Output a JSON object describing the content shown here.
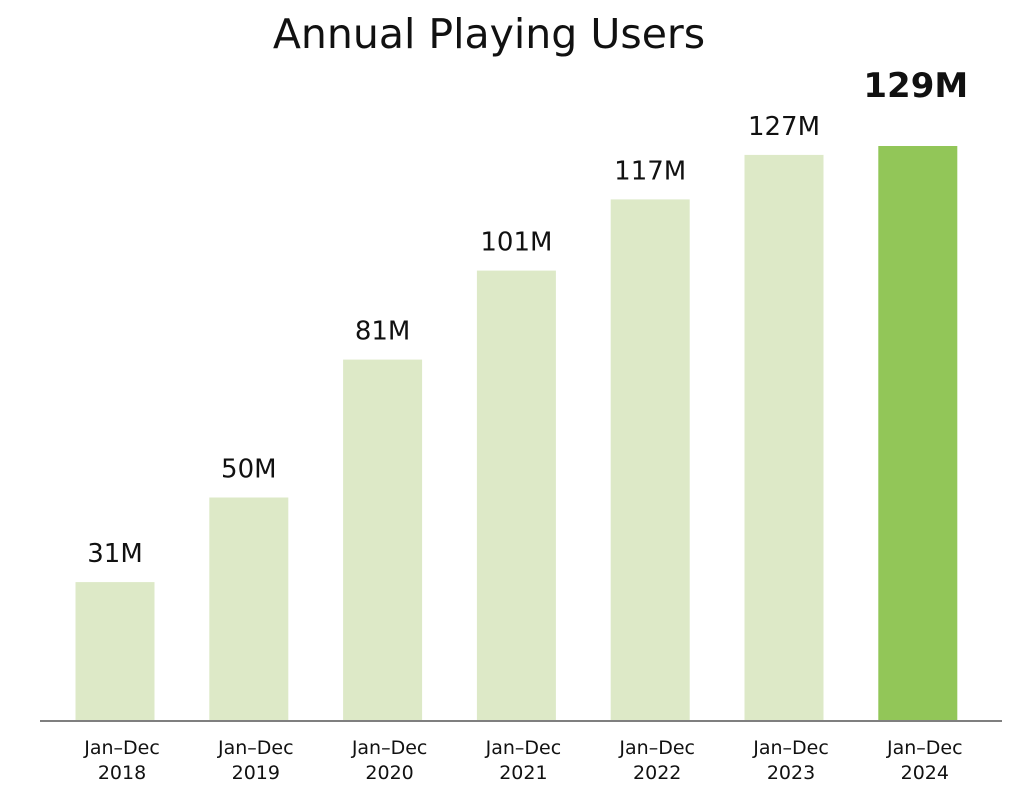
{
  "chart_data": {
    "type": "bar",
    "title": "Annual Playing Users",
    "categories": [
      [
        "Jan–Dec",
        "2018"
      ],
      [
        "Jan–Dec",
        "2019"
      ],
      [
        "Jan–Dec",
        "2020"
      ],
      [
        "Jan–Dec",
        "2021"
      ],
      [
        "Jan–Dec",
        "2022"
      ],
      [
        "Jan–Dec",
        "2023"
      ],
      [
        "Jan–Dec",
        "2024"
      ]
    ],
    "values": [
      31,
      50,
      81,
      101,
      117,
      127,
      129
    ],
    "data_labels": [
      "31M",
      "50M",
      "81M",
      "101M",
      "117M",
      "127M",
      "129M"
    ],
    "highlighted_index": 6,
    "ylim": [
      0,
      129
    ],
    "grid": false,
    "colors": {
      "bar": "#dde9c7",
      "highlight": "#92c658",
      "axis": "#7f7f7f",
      "text": "#111111"
    }
  }
}
